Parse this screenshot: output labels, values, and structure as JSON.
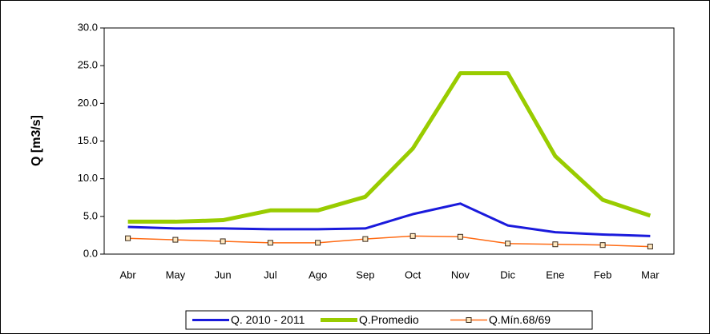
{
  "chart_data": {
    "type": "line",
    "y_label": "Q [m3/s]",
    "categories": [
      "Abr",
      "May",
      "Jun",
      "Jul",
      "Ago",
      "Sep",
      "Oct",
      "Nov",
      "Dic",
      "Ene",
      "Feb",
      "Mar"
    ],
    "series": [
      {
        "name": "Q. 2010 - 2011",
        "color": "#1a1adc",
        "values": [
          3.6,
          3.4,
          3.4,
          3.3,
          3.3,
          3.4,
          5.3,
          6.7,
          3.8,
          2.9,
          2.6,
          2.4
        ]
      },
      {
        "name": "Q.Promedio",
        "color": "#99cc00",
        "values": [
          4.3,
          4.3,
          4.5,
          5.8,
          5.8,
          7.6,
          14.0,
          24.0,
          24.0,
          13.0,
          7.2,
          5.1
        ]
      },
      {
        "name": "Q.Mín.68/69",
        "color": "#ff6a13",
        "values": [
          2.1,
          1.9,
          1.7,
          1.5,
          1.5,
          2.0,
          2.4,
          2.3,
          1.4,
          1.3,
          1.2,
          1.0
        ]
      }
    ],
    "ylim": [
      0,
      30
    ],
    "yticks": [
      {
        "value": 0,
        "label": "0.0"
      },
      {
        "value": 5,
        "label": "5.0"
      },
      {
        "value": 10,
        "label": "10.0"
      },
      {
        "value": 15,
        "label": "15.0"
      },
      {
        "value": 20,
        "label": "20.0"
      },
      {
        "value": 25,
        "label": "25.0"
      },
      {
        "value": 30,
        "label": "30.0"
      }
    ],
    "grid": false,
    "legend": "bottom"
  }
}
